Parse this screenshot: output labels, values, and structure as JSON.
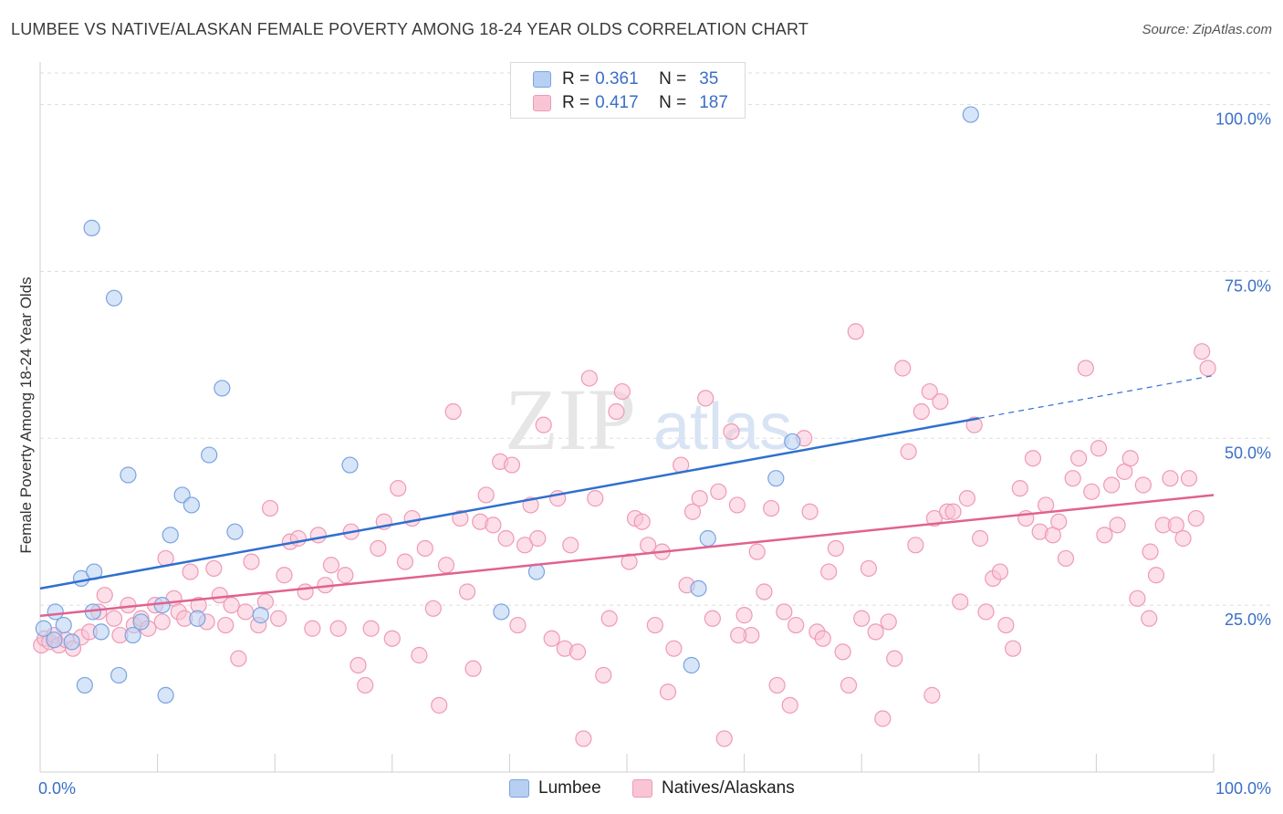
{
  "title": "LUMBEE VS NATIVE/ALASKAN FEMALE POVERTY AMONG 18-24 YEAR OLDS CORRELATION CHART",
  "source": "Source: ZipAtlas.com",
  "watermark": {
    "zip": "ZIP",
    "atlas": "atlas"
  },
  "colors": {
    "lumbee_fill": "#b7cff3",
    "lumbee_stroke": "#7aa3e0",
    "lumbee_line": "#2f6fcf",
    "native_fill": "#f9c5d5",
    "native_stroke": "#ef9ab5",
    "native_line": "#e0628f",
    "accent_text": "#3b6fc6",
    "grid": "#dddddd"
  },
  "legend": {
    "rows": [
      {
        "r_label": "R =",
        "r_value": "0.361",
        "n_label": "N =",
        "n_value": "35"
      },
      {
        "r_label": "R =",
        "r_value": "0.417",
        "n_label": "N =",
        "n_value": "187"
      }
    ]
  },
  "bottom_legend": {
    "lumbee": "Lumbee",
    "native": "Natives/Alaskans"
  },
  "chart_data": {
    "type": "scatter",
    "title": "LUMBEE VS NATIVE/ALASKAN FEMALE POVERTY AMONG 18-24 YEAR OLDS CORRELATION CHART",
    "xlabel": "",
    "ylabel": "Female Poverty Among 18-24 Year Olds",
    "xlim": [
      0,
      100
    ],
    "ylim": [
      0,
      105
    ],
    "x_tick_labels": {
      "left": "0.0%",
      "right": "100.0%"
    },
    "y_ticks": [
      25,
      50,
      75,
      100
    ],
    "y_tick_labels": [
      "25.0%",
      "50.0%",
      "75.0%",
      "100.0%"
    ],
    "grid": true,
    "series": [
      {
        "name": "Lumbee",
        "r": 0.361,
        "n": 35,
        "trend": {
          "x": [
            0,
            80
          ],
          "y": [
            27.5,
            53
          ],
          "dashed_to": {
            "x": 100,
            "y": 59.4
          }
        },
        "points": [
          [
            0.3,
            21.5
          ],
          [
            1.2,
            19.8
          ],
          [
            1.3,
            24
          ],
          [
            2,
            22
          ],
          [
            2.7,
            19.5
          ],
          [
            3.5,
            29
          ],
          [
            3.8,
            13
          ],
          [
            4.5,
            24
          ],
          [
            4.6,
            30
          ],
          [
            4.4,
            81.5
          ],
          [
            5.2,
            21
          ],
          [
            6.3,
            71
          ],
          [
            6.7,
            14.5
          ],
          [
            7.5,
            44.5
          ],
          [
            7.9,
            20.5
          ],
          [
            8.6,
            22.5
          ],
          [
            10.4,
            25
          ],
          [
            10.7,
            11.5
          ],
          [
            11.1,
            35.5
          ],
          [
            12.1,
            41.5
          ],
          [
            12.9,
            40
          ],
          [
            13.4,
            23
          ],
          [
            14.4,
            47.5
          ],
          [
            15.5,
            57.5
          ],
          [
            16.6,
            36
          ],
          [
            18.8,
            23.5
          ],
          [
            26.4,
            46
          ],
          [
            39.3,
            24
          ],
          [
            42.3,
            30
          ],
          [
            55.5,
            16
          ],
          [
            56.1,
            27.5
          ],
          [
            56.9,
            35
          ],
          [
            62.7,
            44
          ],
          [
            64.1,
            49.5
          ],
          [
            79.3,
            98.5
          ]
        ]
      },
      {
        "name": "Natives/Alaskans",
        "r": 0.417,
        "n": 187,
        "trend": {
          "x": [
            0,
            100
          ],
          "y": [
            23.4,
            41.5
          ]
        },
        "points": [
          [
            0.1,
            19
          ],
          [
            0.4,
            20
          ],
          [
            0.8,
            19.5
          ],
          [
            1.2,
            20.5
          ],
          [
            1.6,
            19
          ],
          [
            2.2,
            19.8
          ],
          [
            2.8,
            18.5
          ],
          [
            3.5,
            20.2
          ],
          [
            4.2,
            21
          ],
          [
            5,
            24
          ],
          [
            5.5,
            26.5
          ],
          [
            6.3,
            23
          ],
          [
            6.8,
            20.5
          ],
          [
            7.5,
            25
          ],
          [
            8,
            22
          ],
          [
            8.6,
            23
          ],
          [
            9.2,
            21.5
          ],
          [
            9.8,
            25
          ],
          [
            10.4,
            22.5
          ],
          [
            10.7,
            32
          ],
          [
            11.4,
            26
          ],
          [
            11.8,
            24
          ],
          [
            12.3,
            23
          ],
          [
            12.8,
            30
          ],
          [
            13.5,
            25
          ],
          [
            14.2,
            22.5
          ],
          [
            14.8,
            30.5
          ],
          [
            15.3,
            26.5
          ],
          [
            15.8,
            22
          ],
          [
            16.3,
            25
          ],
          [
            16.9,
            17
          ],
          [
            17.5,
            24
          ],
          [
            18,
            31.5
          ],
          [
            18.6,
            22
          ],
          [
            19.2,
            25.5
          ],
          [
            19.6,
            39.5
          ],
          [
            20.3,
            23
          ],
          [
            20.8,
            29.5
          ],
          [
            21.3,
            34.5
          ],
          [
            22,
            35
          ],
          [
            22.6,
            27
          ],
          [
            23.2,
            21.5
          ],
          [
            23.7,
            35.5
          ],
          [
            24.3,
            28
          ],
          [
            24.8,
            31
          ],
          [
            25.4,
            21.5
          ],
          [
            26,
            29.5
          ],
          [
            26.5,
            36
          ],
          [
            27.1,
            16
          ],
          [
            27.7,
            13
          ],
          [
            28.2,
            21.5
          ],
          [
            28.8,
            33.5
          ],
          [
            29.3,
            37.5
          ],
          [
            30,
            20
          ],
          [
            30.5,
            42.5
          ],
          [
            31.1,
            31.5
          ],
          [
            31.7,
            38
          ],
          [
            32.3,
            17.5
          ],
          [
            32.8,
            33.5
          ],
          [
            33.5,
            24.5
          ],
          [
            34,
            10
          ],
          [
            34.6,
            31
          ],
          [
            35.2,
            54
          ],
          [
            35.8,
            38
          ],
          [
            36.4,
            27
          ],
          [
            36.9,
            15.5
          ],
          [
            37.5,
            37.5
          ],
          [
            38,
            41.5
          ],
          [
            38.6,
            37
          ],
          [
            39.2,
            46.5
          ],
          [
            39.7,
            35
          ],
          [
            40.2,
            46
          ],
          [
            40.7,
            22
          ],
          [
            41.3,
            34
          ],
          [
            41.8,
            40
          ],
          [
            42.4,
            35
          ],
          [
            42.9,
            52
          ],
          [
            43.6,
            20
          ],
          [
            44.1,
            41
          ],
          [
            44.7,
            18.5
          ],
          [
            45.2,
            34
          ],
          [
            45.8,
            18
          ],
          [
            46.3,
            5
          ],
          [
            46.8,
            59
          ],
          [
            47.3,
            41
          ],
          [
            48,
            14.5
          ],
          [
            48.5,
            23
          ],
          [
            49.1,
            54
          ],
          [
            49.6,
            57
          ],
          [
            50.2,
            31.5
          ],
          [
            50.7,
            38
          ],
          [
            51.3,
            37.5
          ],
          [
            51.8,
            34
          ],
          [
            52.4,
            22
          ],
          [
            53,
            33
          ],
          [
            53.5,
            12
          ],
          [
            54,
            18.5
          ],
          [
            54.6,
            46
          ],
          [
            55.1,
            28
          ],
          [
            55.6,
            39
          ],
          [
            56.2,
            41
          ],
          [
            56.7,
            56
          ],
          [
            57.3,
            23
          ],
          [
            57.8,
            42
          ],
          [
            58.3,
            5
          ],
          [
            58.9,
            51
          ],
          [
            59.4,
            40
          ],
          [
            60,
            23.5
          ],
          [
            60.6,
            20.5
          ],
          [
            61.1,
            33
          ],
          [
            61.7,
            27
          ],
          [
            62.3,
            39.5
          ],
          [
            62.8,
            13
          ],
          [
            63.4,
            24
          ],
          [
            63.9,
            10
          ],
          [
            64.4,
            22
          ],
          [
            65.1,
            50
          ],
          [
            65.6,
            39
          ],
          [
            66.2,
            21
          ],
          [
            66.7,
            20
          ],
          [
            67.2,
            30
          ],
          [
            67.8,
            33.5
          ],
          [
            68.4,
            18
          ],
          [
            68.9,
            13
          ],
          [
            69.5,
            66
          ],
          [
            70,
            23
          ],
          [
            70.6,
            30.5
          ],
          [
            71.2,
            21
          ],
          [
            71.8,
            8
          ],
          [
            72.3,
            22.5
          ],
          [
            72.8,
            17
          ],
          [
            73.5,
            60.5
          ],
          [
            74,
            48
          ],
          [
            74.6,
            34
          ],
          [
            75.1,
            54
          ],
          [
            75.8,
            57
          ],
          [
            76.2,
            38
          ],
          [
            76.7,
            55.5
          ],
          [
            77.3,
            39
          ],
          [
            77.8,
            39
          ],
          [
            78.4,
            25.5
          ],
          [
            79,
            41
          ],
          [
            79.6,
            52
          ],
          [
            80.1,
            35
          ],
          [
            80.6,
            24
          ],
          [
            81.2,
            29
          ],
          [
            81.8,
            30
          ],
          [
            82.3,
            22
          ],
          [
            82.9,
            18.5
          ],
          [
            83.5,
            42.5
          ],
          [
            84,
            38
          ],
          [
            84.6,
            47
          ],
          [
            85.2,
            36
          ],
          [
            85.7,
            40
          ],
          [
            86.3,
            35.5
          ],
          [
            86.8,
            37.5
          ],
          [
            87.4,
            32
          ],
          [
            88,
            44
          ],
          [
            88.5,
            47
          ],
          [
            89.1,
            60.5
          ],
          [
            89.6,
            42
          ],
          [
            90.2,
            48.5
          ],
          [
            90.7,
            35.5
          ],
          [
            91.3,
            43
          ],
          [
            91.8,
            37
          ],
          [
            92.4,
            45
          ],
          [
            92.9,
            47
          ],
          [
            93.5,
            26
          ],
          [
            94,
            43
          ],
          [
            94.6,
            33
          ],
          [
            95.1,
            29.5
          ],
          [
            95.7,
            37
          ],
          [
            96.3,
            44
          ],
          [
            96.8,
            37
          ],
          [
            97.4,
            35
          ],
          [
            97.9,
            44
          ],
          [
            98.5,
            38
          ],
          [
            99,
            63
          ],
          [
            99.5,
            60.5
          ],
          [
            94.5,
            23
          ],
          [
            59.5,
            20.5
          ],
          [
            76,
            11.5
          ]
        ]
      }
    ]
  },
  "axes": {
    "ylabel": "Female Poverty Among 18-24 Year Olds",
    "x_left": "0.0%",
    "x_right": "100.0%"
  }
}
